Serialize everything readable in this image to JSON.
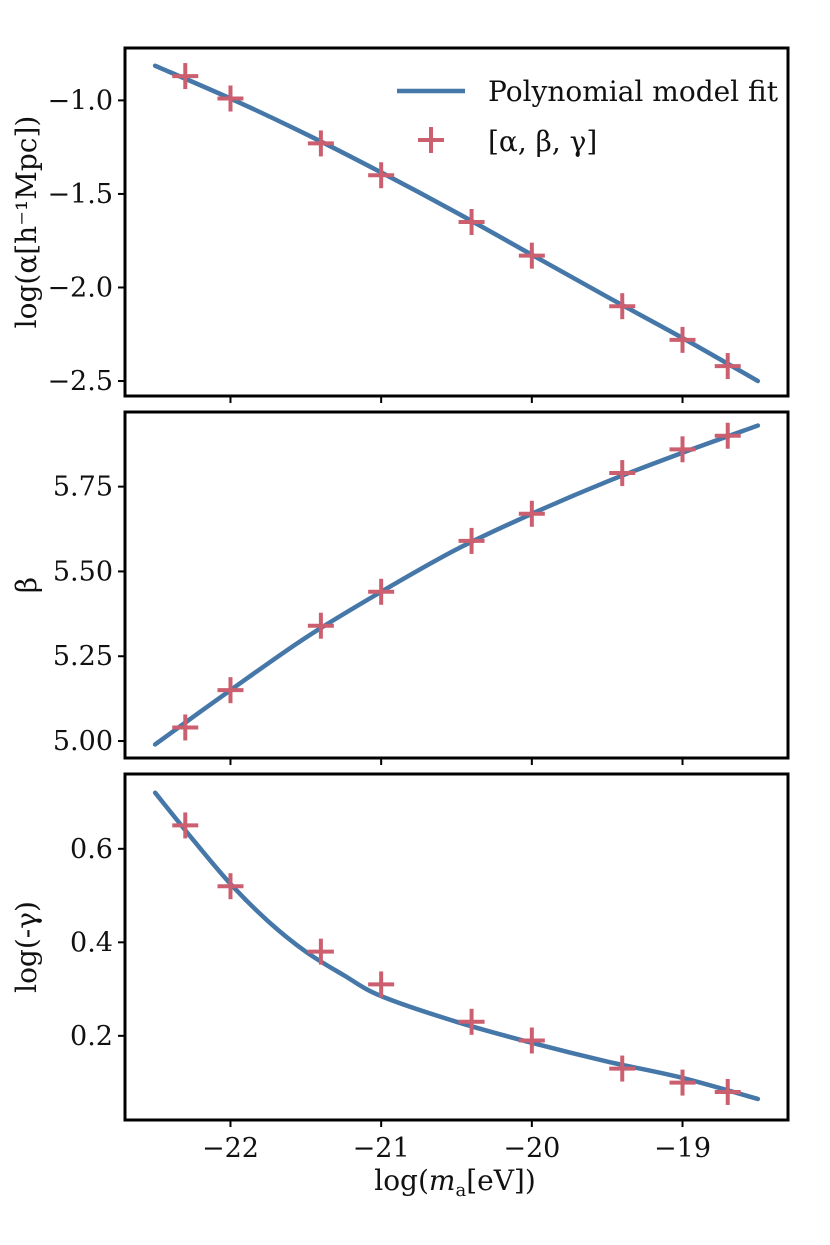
{
  "colors": {
    "fit": "#4577a8",
    "points": "#cc5f6f"
  },
  "legend": {
    "placement": "top-right",
    "fit_label": "Polynomial model fit",
    "points_label": "[α, β, γ]"
  },
  "x_axis": {
    "label_main": "log(",
    "label_var": "m",
    "label_sub": "a",
    "label_tail": "[eV])",
    "range": [
      -22.7,
      -18.3
    ],
    "ticks": [
      -22,
      -21,
      -20,
      -19
    ],
    "tick_labels": [
      "−22",
      "−21",
      "−20",
      "−19"
    ]
  },
  "chart_data": [
    {
      "type": "line",
      "panel": "top",
      "ylabel": "log(α[h⁻¹Mpc])",
      "ylim": [
        -2.58,
        -0.72
      ],
      "yticks": [
        -1.0,
        -1.5,
        -2.0,
        -2.5
      ],
      "ytick_labels": [
        "−1.0",
        "−1.5",
        "−2.0",
        "−2.5"
      ],
      "series": [
        {
          "name": "Polynomial model fit",
          "kind": "line",
          "x": [
            -22.5,
            -22.0,
            -21.5,
            -21.0,
            -20.5,
            -20.0,
            -19.5,
            -19.0,
            -18.5
          ],
          "y": [
            -0.815,
            -0.99,
            -1.18,
            -1.385,
            -1.6,
            -1.825,
            -2.05,
            -2.27,
            -2.5
          ]
        },
        {
          "name": "[α, β, γ]",
          "kind": "scatter",
          "x": [
            -22.3,
            -22.0,
            -21.4,
            -21.0,
            -20.4,
            -20.0,
            -19.4,
            -19.0,
            -18.7
          ],
          "y": [
            -0.87,
            -0.99,
            -1.23,
            -1.4,
            -1.65,
            -1.83,
            -2.1,
            -2.28,
            -2.42
          ]
        }
      ]
    },
    {
      "type": "line",
      "panel": "middle",
      "ylabel": "β",
      "ylim": [
        4.95,
        5.97
      ],
      "yticks": [
        5.0,
        5.25,
        5.5,
        5.75
      ],
      "ytick_labels": [
        "5.00",
        "5.25",
        "5.50",
        "5.75"
      ],
      "series": [
        {
          "name": "Polynomial model fit",
          "kind": "line",
          "x": [
            -22.5,
            -22.0,
            -21.5,
            -21.0,
            -20.5,
            -20.0,
            -19.5,
            -19.0,
            -18.5
          ],
          "y": [
            4.99,
            5.15,
            5.305,
            5.44,
            5.565,
            5.67,
            5.765,
            5.85,
            5.93
          ]
        },
        {
          "name": "[α, β, γ]",
          "kind": "scatter",
          "x": [
            -22.3,
            -22.0,
            -21.4,
            -21.0,
            -20.4,
            -20.0,
            -19.4,
            -19.0,
            -18.7
          ],
          "y": [
            5.04,
            5.15,
            5.34,
            5.44,
            5.59,
            5.67,
            5.79,
            5.86,
            5.9
          ]
        }
      ]
    },
    {
      "type": "line",
      "panel": "bottom",
      "ylabel": "log(-γ)",
      "ylim": [
        0.02,
        0.76
      ],
      "yticks": [
        0.2,
        0.4,
        0.6
      ],
      "ytick_labels": [
        "0.2",
        "0.4",
        "0.6"
      ],
      "series": [
        {
          "name": "Polynomial model fit",
          "kind": "line",
          "x": [
            -22.5,
            -22.25,
            -22.0,
            -21.75,
            -21.5,
            -21.25,
            -21.0,
            -20.5,
            -20.0,
            -19.5,
            -19.0,
            -18.5
          ],
          "y": [
            0.72,
            0.62,
            0.525,
            0.445,
            0.38,
            0.33,
            0.285,
            0.23,
            0.185,
            0.145,
            0.11,
            0.065
          ]
        },
        {
          "name": "[α, β, γ]",
          "kind": "scatter",
          "x": [
            -22.3,
            -22.0,
            -21.4,
            -21.0,
            -20.4,
            -20.0,
            -19.4,
            -19.0,
            -18.7
          ],
          "y": [
            0.65,
            0.52,
            0.38,
            0.31,
            0.23,
            0.19,
            0.13,
            0.1,
            0.08
          ]
        }
      ]
    }
  ]
}
